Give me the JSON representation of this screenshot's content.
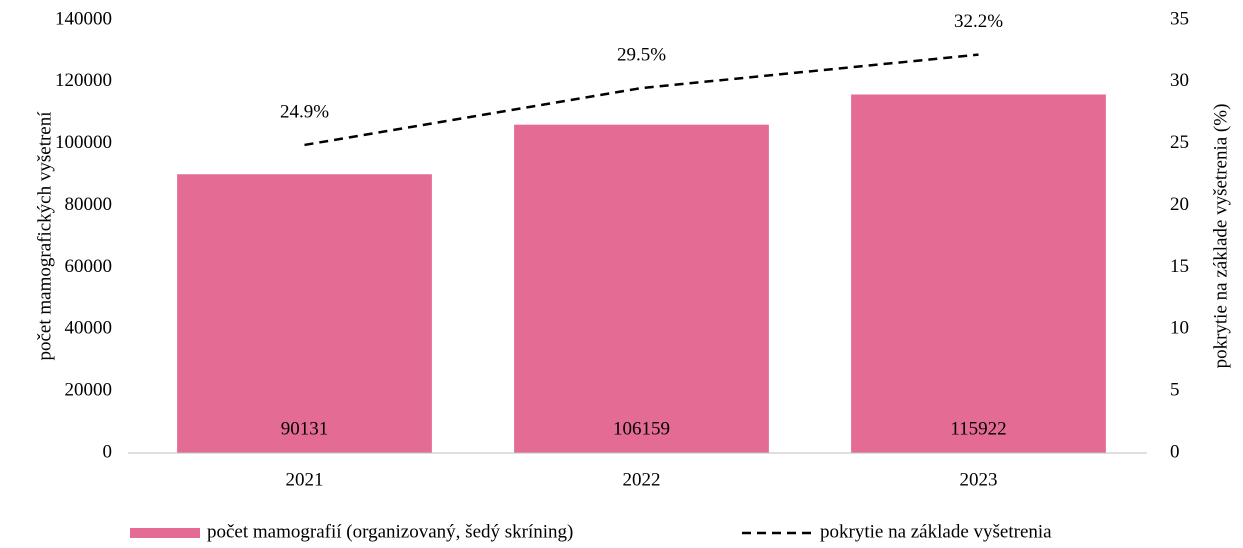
{
  "chart_data": {
    "type": "bar",
    "categories": [
      "2021",
      "2022",
      "2023"
    ],
    "series": [
      {
        "name": "počet mamografií (organizovaný, šedý skríning)",
        "color": "#e46c94",
        "values": [
          90131,
          106159,
          115922
        ]
      },
      {
        "name": "pokrytie na základe vyšetrenia",
        "color": "#000000",
        "values": [
          24.9,
          29.5,
          32.2
        ],
        "value_labels": [
          "24.9%",
          "29.5%",
          "32.2%"
        ],
        "axis": "y2",
        "line_style": "dashed"
      }
    ],
    "ylabel": "počet mamografických vyšetrení",
    "y2label": "pokrytie na základe vyšetrenia (%)",
    "ylim": [
      0,
      140000
    ],
    "yticks": [
      0,
      20000,
      40000,
      60000,
      80000,
      100000,
      120000,
      140000
    ],
    "y2lim": [
      0,
      35
    ],
    "y2ticks": [
      0,
      5,
      10,
      15,
      20,
      25,
      30,
      35
    ],
    "legend": "bottom"
  }
}
